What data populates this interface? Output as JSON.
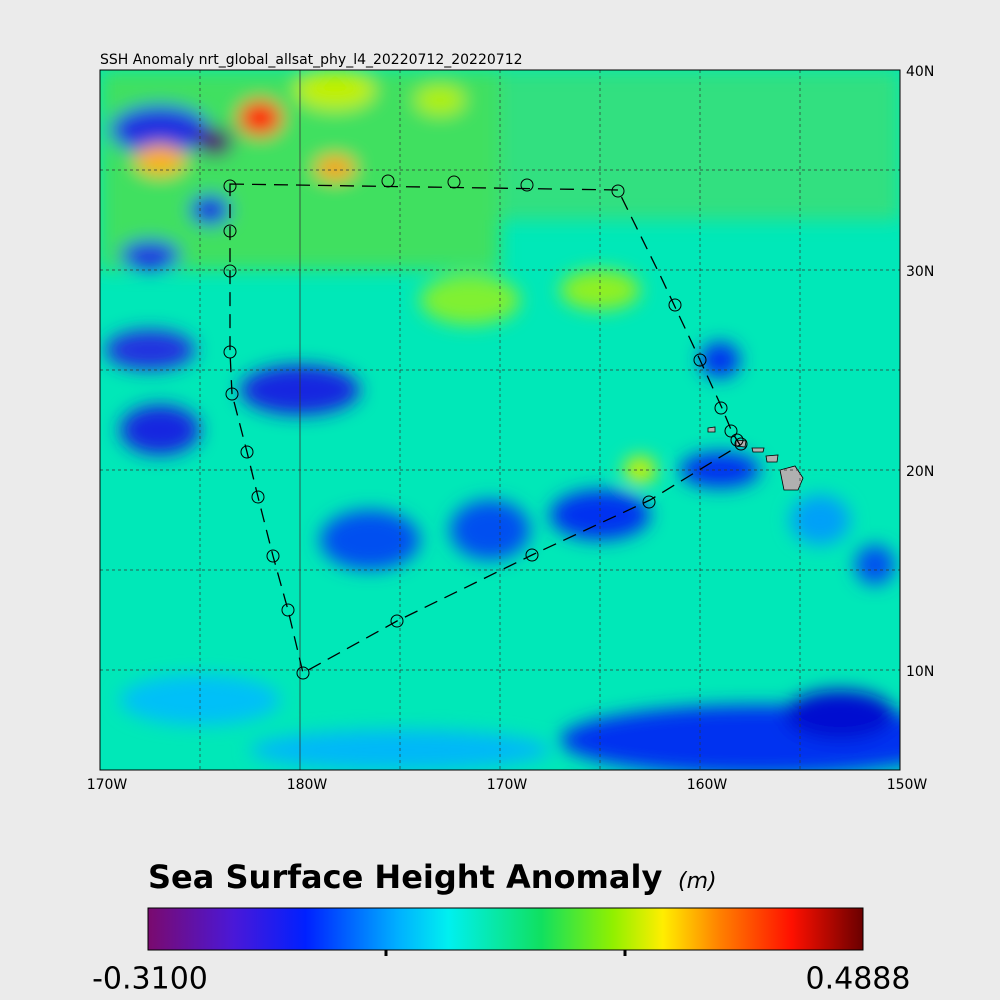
{
  "map": {
    "title": "SSH Anomaly nrt_global_allsat_phy_l4_20220712_20220712",
    "x_labels": [
      "170W",
      "180W",
      "170W",
      "160W",
      "150W"
    ],
    "y_labels": [
      "40N",
      "30N",
      "20N",
      "10N"
    ],
    "colorbar": {
      "title": "Sea Surface Height Anomaly",
      "units": "(m)",
      "min_label": "-0.3100",
      "max_label": "0.4888"
    }
  }
}
